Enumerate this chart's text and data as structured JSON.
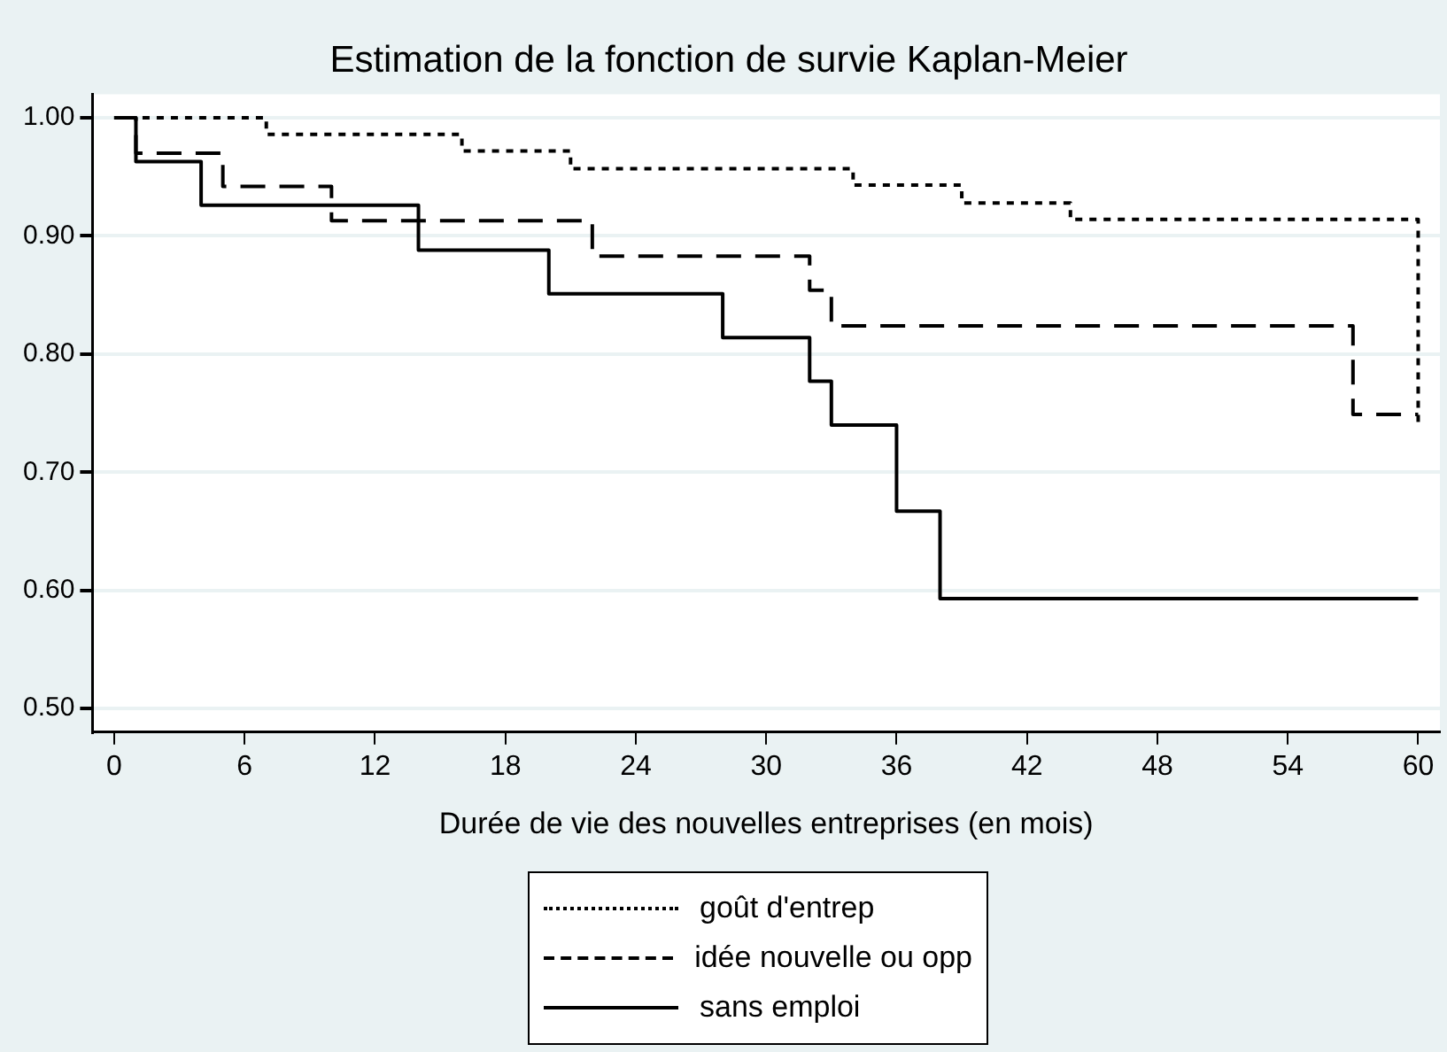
{
  "chart_data": {
    "type": "step",
    "title": "Estimation de la fonction de survie Kaplan-Meier",
    "xlabel": "Durée de vie des nouvelles entreprises (en mois)",
    "series": [
      {
        "name": "goût d'entrep",
        "color": "#000000",
        "line_style": "dotted",
        "x": [
          0,
          7,
          16,
          21,
          34,
          39,
          44,
          60
        ],
        "values": [
          1.0,
          0.986,
          0.972,
          0.957,
          0.943,
          0.928,
          0.914,
          0.738
        ]
      },
      {
        "name": "idée nouvelle ou opp",
        "color": "#000000",
        "line_style": "dashed",
        "x": [
          0,
          1,
          5,
          10,
          22,
          32,
          33,
          57,
          60
        ],
        "values": [
          1.0,
          0.97,
          0.942,
          0.913,
          0.883,
          0.854,
          0.824,
          0.749,
          0.749
        ]
      },
      {
        "name": "sans emploi",
        "color": "#000000",
        "line_style": "solid",
        "x": [
          0,
          1,
          4,
          14,
          20,
          28,
          32,
          33,
          36,
          38,
          60
        ],
        "values": [
          1.0,
          0.963,
          0.926,
          0.888,
          0.851,
          0.814,
          0.777,
          0.74,
          0.667,
          0.593,
          0.593
        ]
      }
    ],
    "xlim": [
      -1,
      61
    ],
    "xticks": [
      0,
      6,
      12,
      18,
      24,
      30,
      36,
      42,
      48,
      54,
      60
    ],
    "ylim": [
      0.48,
      1.02
    ],
    "yticks": [
      {
        "value": 0.5,
        "label": "0.50"
      },
      {
        "value": 0.6,
        "label": "0.60"
      },
      {
        "value": 0.7,
        "label": "0.70"
      },
      {
        "value": 0.8,
        "label": "0.80"
      },
      {
        "value": 0.9,
        "label": "0.90"
      },
      {
        "value": 1.0,
        "label": "1.00"
      }
    ],
    "grid": "y",
    "legend": "bottom",
    "marker": "none"
  }
}
